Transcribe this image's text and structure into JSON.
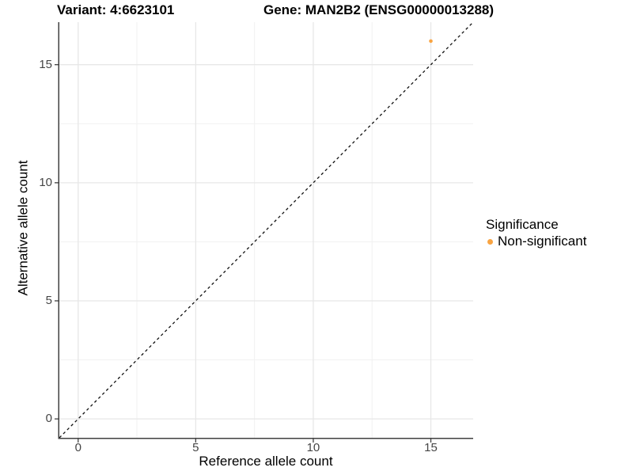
{
  "header": {
    "title_left": "Variant: 4:6623101",
    "title_right": "Gene: MAN2B2 (ENSG00000013288)"
  },
  "chart_data": {
    "type": "scatter",
    "xlabel": "Reference allele count",
    "ylabel": "Alternative allele count",
    "xlim": [
      -0.8,
      16.8
    ],
    "ylim": [
      -0.8,
      16.8
    ],
    "x_major_ticks": [
      0,
      5,
      10,
      15
    ],
    "y_major_ticks": [
      0,
      5,
      10,
      15
    ],
    "x_minor_ticks": [
      2.5,
      7.5,
      12.5
    ],
    "y_minor_ticks": [
      2.5,
      7.5,
      12.5
    ],
    "grid": "major+minor",
    "series": [
      {
        "name": "Non-significant",
        "color": "#F9A442",
        "points": [
          {
            "x": 15,
            "y": 16
          }
        ]
      }
    ],
    "reference_line": {
      "kind": "identity",
      "equation": "y = x",
      "style": "dashed",
      "color": "#111111"
    },
    "legend": {
      "title": "Significance",
      "position": "right",
      "entries": [
        {
          "label": "Non-significant",
          "color": "#F9A442",
          "marker": "circle"
        }
      ]
    }
  },
  "colors": {
    "background": "#FFFFFF",
    "axis_line": "#404040",
    "tick_mark": "#404040",
    "tick_label": "#454545",
    "grid_major": "#E7E7E7",
    "grid_minor": "#F1F1F1",
    "point_orange": "#F9A442",
    "text": "#000000"
  }
}
